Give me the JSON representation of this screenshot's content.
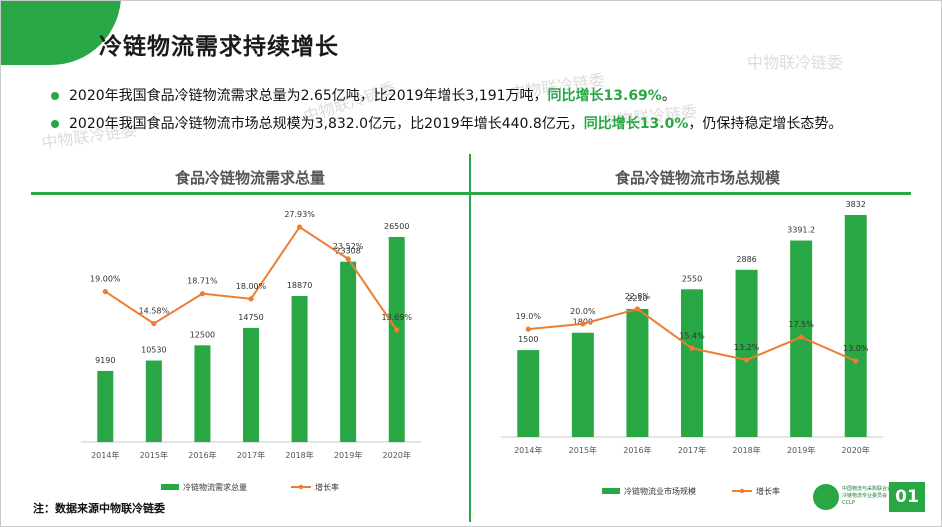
{
  "title": "冷链物流需求持续增长",
  "bullets": [
    {
      "text": "2020年我国食品冷链物流需求总量为2.65亿吨，比2019年增长3,191万吨，",
      "highlight": "同比增长13.69%",
      "tail": "。"
    },
    {
      "text": "2020年我国食品冷链物流市场总规模为3,832.0亿元，比2019年增长440.8亿元，",
      "highlight": "同比增长13.0%",
      "tail": "，仍保持稳定增长态势。"
    }
  ],
  "watermarks": [
    "中物联冷链委",
    "中物联冷链委",
    "中物联冷链委",
    "中物联冷链委",
    "中物联冷链委"
  ],
  "colors": {
    "accent": "#29a745",
    "line": "#ed7d31"
  },
  "chart_data": [
    {
      "type": "bar",
      "title": "食品冷链物流需求总量",
      "categories": [
        "2014年",
        "2015年",
        "2016年",
        "2017年",
        "2018年",
        "2019年",
        "2020年"
      ],
      "series": [
        {
          "name": "冷链物流需求总量",
          "type": "bar",
          "values": [
            9190,
            10530,
            12500,
            14750,
            18870,
            23308,
            26500
          ],
          "labels": [
            "9190",
            "10530",
            "12500",
            "14750",
            "18870",
            "23308",
            "26500"
          ]
        },
        {
          "name": "增长率",
          "type": "line",
          "values": [
            19.0,
            14.58,
            18.71,
            18.0,
            27.93,
            23.52,
            13.69
          ],
          "labels": [
            "19.00%",
            "14.58%",
            "18.71%",
            "18.00%",
            "27.93%",
            "23.52%",
            "13.69%"
          ]
        }
      ],
      "legend": "bottom",
      "grid": false
    },
    {
      "type": "bar",
      "title": "食品冷链物流市场总规模",
      "categories": [
        "2014年",
        "2015年",
        "2016年",
        "2017年",
        "2018年",
        "2019年",
        "2020年"
      ],
      "series": [
        {
          "name": "冷链物流业市场规模",
          "type": "bar",
          "values": [
            1500,
            1800,
            2210,
            2550,
            2886,
            3391.2,
            3832
          ],
          "labels": [
            "1500",
            "1800",
            "2210",
            "2550",
            "2886",
            "3391.2",
            "3832"
          ]
        },
        {
          "name": "增长率",
          "type": "line",
          "values": [
            19.0,
            20.0,
            22.8,
            15.4,
            13.2,
            17.5,
            13.0
          ],
          "labels": [
            "19.0%",
            "20.0%",
            "22.8%",
            "15.4%",
            "13.2%",
            "17.5%",
            "13.0%"
          ]
        }
      ],
      "legend": "bottom",
      "grid": false
    }
  ],
  "note": "注：数据来源中物联冷链委",
  "footer": {
    "org_line1": "中国物流与采购联合会",
    "org_line2": "冷链物流专业委员会",
    "org_abbr": "CCLP",
    "page": "01"
  }
}
